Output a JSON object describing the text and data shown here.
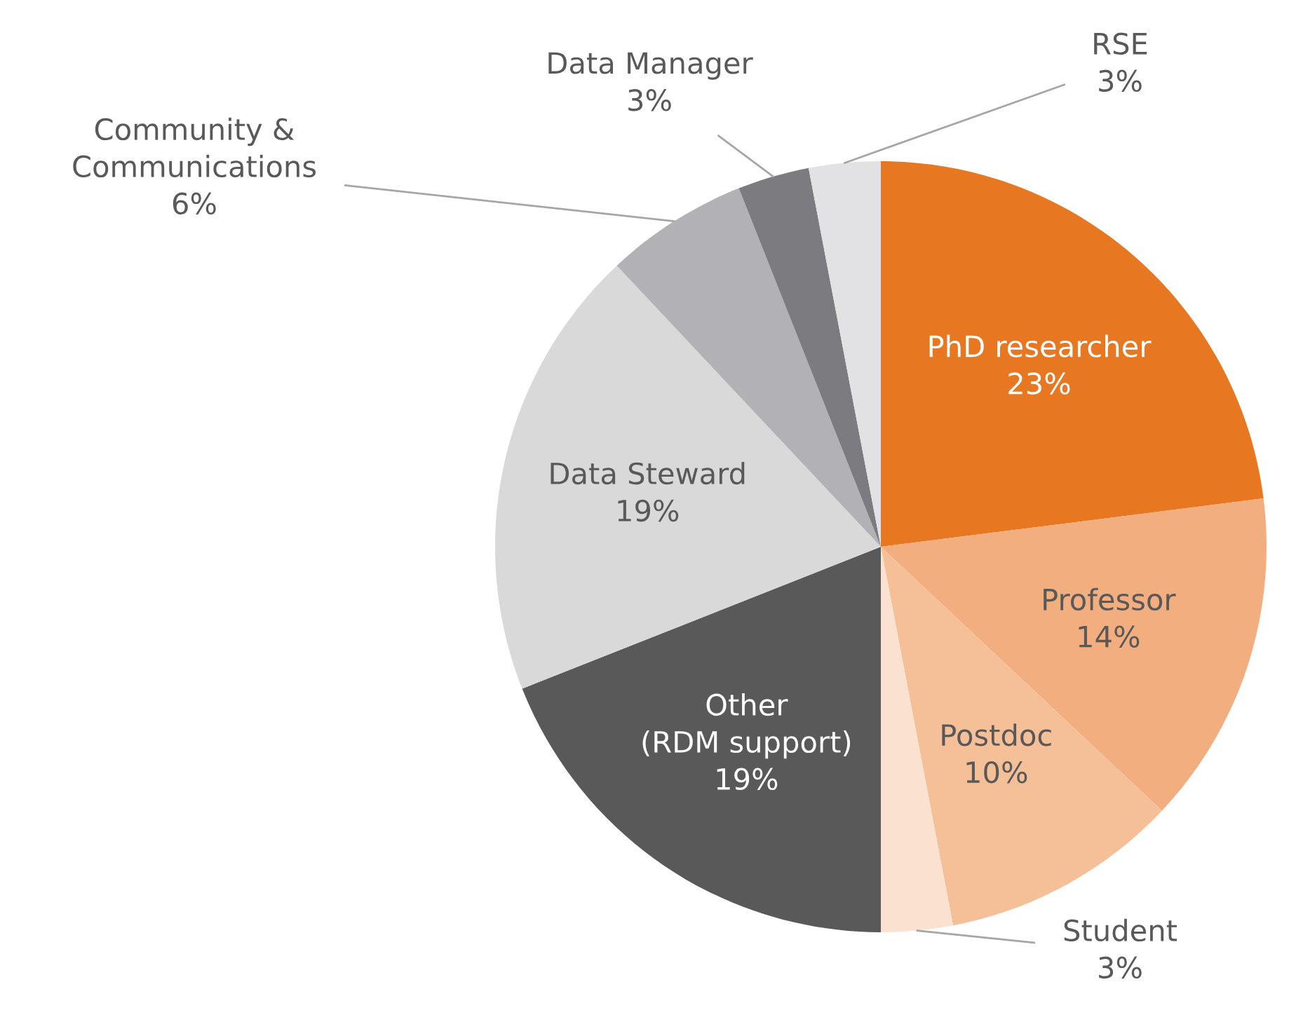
{
  "chart_data": {
    "type": "pie",
    "categories": [
      "PhD researcher",
      "Professor",
      "Postdoc",
      "Student",
      "Other\n(RDM support)",
      "Data Steward",
      "Community &\nCommunications",
      "Data Manager",
      "RSE"
    ],
    "values": [
      23,
      14,
      10,
      3,
      19,
      19,
      6,
      3,
      3
    ],
    "colors": [
      "#e87722",
      "#f2ae7e",
      "#f5bf98",
      "#fbe2d0",
      "#595959",
      "#d9d9d9",
      "#b2b2b6",
      "#7b7b80",
      "#e2e2e4"
    ],
    "value_labels": [
      "23%",
      "14%",
      "10%",
      "3%",
      "19%",
      "19%",
      "6%",
      "3%",
      "3%"
    ]
  }
}
